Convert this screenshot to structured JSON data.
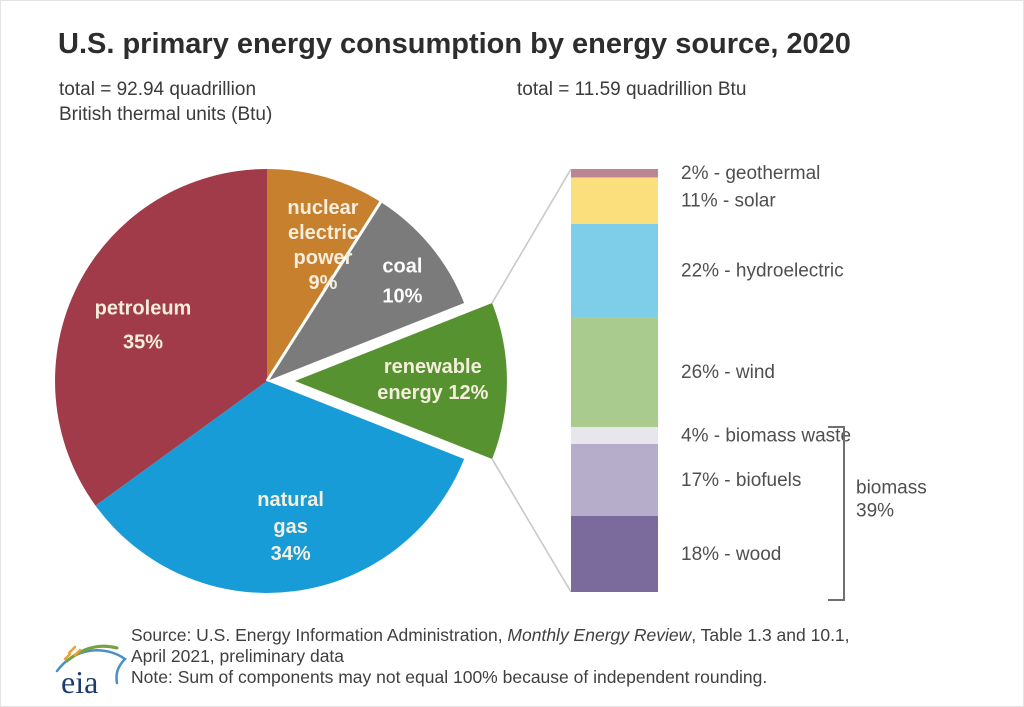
{
  "header": {
    "title": "U.S. primary energy consumption by energy source, 2020",
    "pie_total_line1": "total = 92.94 quadrillion",
    "pie_total_line2": "British thermal units (Btu)",
    "bar_total": "total = 11.59 quadrillion Btu"
  },
  "chart_data": [
    {
      "type": "pie",
      "title": "U.S. primary energy consumption by energy source, 2020",
      "total_label": "total = 92.94 quadrillion British thermal units (Btu)",
      "units": "percent share",
      "start_angle_deg": 0,
      "clockwise": true,
      "slices": [
        {
          "label": "nuclear electric power",
          "value": 9,
          "color": "#c6802e",
          "label_color": "#f5eedd",
          "label_lines": [
            "nuclear",
            "electric",
            "power",
            "9%"
          ]
        },
        {
          "label": "coal",
          "value": 10,
          "color": "#7b7b7b",
          "label_color": "#fdfdfd",
          "label_lines": [
            "coal",
            "10%"
          ]
        },
        {
          "label": "renewable energy",
          "value": 12,
          "color": "#579231",
          "label_color": "#f5eedd",
          "label_lines": [
            "renewable",
            "energy 12%"
          ],
          "exploded": true
        },
        {
          "label": "natural gas",
          "value": 34,
          "color": "#189cd8",
          "label_color": "#f5eedd",
          "label_lines": [
            "natural",
            "gas",
            "34%"
          ]
        },
        {
          "label": "petroleum",
          "value": 35,
          "color": "#a23b49",
          "label_color": "#f5eedd",
          "label_lines": [
            "petroleum",
            "35%"
          ]
        }
      ]
    },
    {
      "type": "bar",
      "stacked": true,
      "orientation": "vertical",
      "total_label": "total = 11.59 quadrillion Btu",
      "units": "percent share of renewable energy",
      "segments": [
        {
          "label": "geothermal",
          "value": 2,
          "color": "#bc8593",
          "annotation": "2% - geothermal"
        },
        {
          "label": "solar",
          "value": 11,
          "color": "#fbdf7c",
          "annotation": "11% - solar"
        },
        {
          "label": "hydroelectric",
          "value": 22,
          "color": "#7ecde9",
          "annotation": "22% - hydroelectric"
        },
        {
          "label": "wind",
          "value": 26,
          "color": "#a9cb8e",
          "annotation": "26% - wind"
        },
        {
          "label": "biomass waste",
          "value": 4,
          "color": "#e7e6ec",
          "annotation": "4% - biomass waste"
        },
        {
          "label": "biofuels",
          "value": 17,
          "color": "#b6adca",
          "annotation": "17% - biofuels"
        },
        {
          "label": "wood",
          "value": 18,
          "color": "#7b6b9d",
          "annotation": "18% - wood"
        }
      ],
      "bracket": {
        "from_segment": "biomass waste",
        "to_segment": "wood",
        "label_line1": "biomass",
        "label_line2": "39%"
      }
    }
  ],
  "footer": {
    "source_prefix": "Source: U.S. Energy Information Administration, ",
    "source_italic": "Monthly Energy Review",
    "source_suffix": ", Table 1.3 and 10.1,",
    "source_line2": "April 2021, preliminary data",
    "note": "Note: Sum of components may not equal 100% because of independent rounding.",
    "logo_text": "eia"
  },
  "colors": {
    "title_text": "#2d2d2d",
    "subtitle_text": "#3b3b3b",
    "annotation_text": "#4f4f4f",
    "source_text": "#3f3f3f",
    "connector_line": "#c9c9c9",
    "bracket_line": "#707070",
    "logo_navy": "#1d3c6e",
    "logo_green": "#76a240",
    "logo_blue": "#4a90c4",
    "logo_orange": "#e8a33d",
    "background": "#ffffff"
  }
}
